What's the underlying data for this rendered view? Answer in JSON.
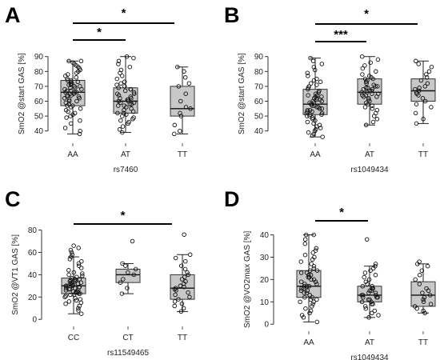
{
  "chart_data": [
    {
      "type": "box",
      "panel_label": "A",
      "title": "",
      "xlabel": "rs7460",
      "ylabel": "SmO2 @start GAS [%]",
      "ylim": [
        35,
        92
      ],
      "yticks": [
        40,
        50,
        60,
        70,
        80,
        90
      ],
      "categories": [
        "AA",
        "AT",
        "TT"
      ],
      "boxes": [
        {
          "category": "AA",
          "min": 38,
          "q1": 57,
          "median": 66,
          "q3": 74,
          "max": 87
        },
        {
          "category": "AT",
          "min": 39,
          "q1": 52,
          "median": 60,
          "q3": 69,
          "max": 90
        },
        {
          "category": "TT",
          "min": 38,
          "q1": 50,
          "median": 55,
          "q3": 70,
          "max": 83
        }
      ],
      "points": [
        {
          "category": "AA",
          "values": [
            38,
            40,
            42,
            45,
            47,
            49,
            50,
            51,
            52,
            53,
            54,
            55,
            56,
            57,
            57,
            58,
            59,
            60,
            60,
            61,
            62,
            62,
            63,
            63,
            64,
            64,
            65,
            65,
            66,
            66,
            66,
            67,
            67,
            68,
            68,
            69,
            69,
            70,
            70,
            71,
            71,
            72,
            72,
            73,
            73,
            74,
            74,
            75,
            76,
            77,
            78,
            79,
            80,
            81,
            82,
            83,
            84,
            85,
            86,
            87,
            87
          ]
        },
        {
          "category": "AT",
          "values": [
            39,
            41,
            43,
            45,
            46,
            47,
            48,
            49,
            50,
            51,
            52,
            52,
            53,
            54,
            55,
            56,
            57,
            57,
            58,
            58,
            59,
            59,
            60,
            60,
            61,
            61,
            62,
            62,
            63,
            64,
            65,
            65,
            66,
            67,
            68,
            68,
            69,
            70,
            71,
            72,
            73,
            75,
            77,
            79,
            81,
            83,
            85,
            87,
            89,
            90
          ]
        },
        {
          "category": "TT",
          "values": [
            38,
            40,
            44,
            50,
            52,
            55,
            56,
            60,
            65,
            70,
            72,
            76,
            80,
            83
          ]
        }
      ],
      "significance": [
        {
          "from": "AA",
          "to": "AT",
          "label": "*"
        },
        {
          "from": "AA",
          "to": "TT",
          "label": "*"
        }
      ]
    },
    {
      "type": "box",
      "panel_label": "B",
      "title": "",
      "xlabel": "rs1049434",
      "ylabel": "SmO2 @start GAS [%]",
      "ylim": [
        35,
        92
      ],
      "yticks": [
        40,
        50,
        60,
        70,
        80,
        90
      ],
      "categories": [
        "AA",
        "AT",
        "TT"
      ],
      "boxes": [
        {
          "category": "AA",
          "min": 36,
          "q1": 51,
          "median": 58,
          "q3": 68,
          "max": 89
        },
        {
          "category": "AT",
          "min": 44,
          "q1": 58,
          "median": 66,
          "q3": 75,
          "max": 90
        },
        {
          "category": "TT",
          "min": 45,
          "q1": 60,
          "median": 67,
          "q3": 75,
          "max": 87
        }
      ],
      "points": [
        {
          "category": "AA",
          "values": [
            36,
            37,
            38,
            39,
            40,
            41,
            42,
            43,
            44,
            45,
            46,
            47,
            48,
            49,
            50,
            50,
            51,
            51,
            52,
            52,
            53,
            53,
            54,
            54,
            55,
            55,
            56,
            56,
            57,
            57,
            58,
            58,
            59,
            59,
            60,
            60,
            61,
            61,
            62,
            62,
            63,
            63,
            64,
            64,
            65,
            66,
            67,
            68,
            69,
            70,
            71,
            72,
            73,
            74,
            75,
            77,
            79,
            81,
            83,
            85,
            87,
            89
          ]
        },
        {
          "category": "AT",
          "values": [
            44,
            46,
            48,
            50,
            52,
            54,
            55,
            56,
            57,
            58,
            59,
            60,
            61,
            62,
            63,
            63,
            64,
            64,
            65,
            65,
            66,
            66,
            67,
            67,
            68,
            68,
            69,
            69,
            70,
            70,
            71,
            72,
            73,
            74,
            75,
            75,
            76,
            77,
            78,
            80,
            82,
            84,
            86,
            88,
            90
          ]
        },
        {
          "category": "TT",
          "values": [
            45,
            48,
            52,
            56,
            58,
            60,
            62,
            64,
            65,
            66,
            67,
            68,
            69,
            70,
            72,
            74,
            76,
            78,
            80,
            83,
            85,
            87
          ]
        }
      ],
      "significance": [
        {
          "from": "AA",
          "to": "AT",
          "label": "***"
        },
        {
          "from": "AA",
          "to": "TT",
          "label": "*"
        }
      ]
    },
    {
      "type": "box",
      "panel_label": "C",
      "title": "",
      "xlabel": "rs11549465",
      "ylabel": "SmO2 @VT1 GAS [%]",
      "ylim": [
        -2,
        84
      ],
      "yticks": [
        0,
        20,
        40,
        60,
        80
      ],
      "categories": [
        "CC",
        "CT",
        "TT"
      ],
      "boxes": [
        {
          "category": "CC",
          "min": 5,
          "q1": 23,
          "median": 30,
          "q3": 37,
          "max": 56
        },
        {
          "category": "CT",
          "min": 23,
          "q1": 33,
          "median": 40,
          "q3": 45,
          "max": 50
        },
        {
          "category": "TT",
          "min": 7,
          "q1": 18,
          "median": 28,
          "q3": 40,
          "max": 58
        }
      ],
      "points": [
        {
          "category": "CC",
          "values": [
            5,
            8,
            10,
            12,
            14,
            15,
            16,
            17,
            18,
            19,
            20,
            21,
            22,
            22,
            23,
            23,
            24,
            24,
            25,
            25,
            26,
            26,
            27,
            27,
            28,
            28,
            29,
            29,
            30,
            30,
            30,
            31,
            31,
            32,
            32,
            33,
            33,
            34,
            34,
            35,
            35,
            36,
            36,
            37,
            38,
            39,
            40,
            41,
            42,
            44,
            46,
            48,
            50,
            52,
            54,
            56,
            58,
            60,
            62,
            64,
            66
          ]
        },
        {
          "category": "CT",
          "values": [
            23,
            28,
            33,
            36,
            40,
            42,
            45,
            48,
            50,
            70
          ]
        },
        {
          "category": "TT",
          "values": [
            7,
            10,
            12,
            14,
            16,
            18,
            20,
            22,
            24,
            26,
            27,
            28,
            29,
            30,
            32,
            34,
            36,
            38,
            40,
            42,
            45,
            48,
            52,
            55,
            58,
            76
          ]
        }
      ],
      "significance": [
        {
          "from": "CC",
          "to": "CT",
          "label": "*"
        }
      ]
    },
    {
      "type": "box",
      "panel_label": "D",
      "title": "",
      "xlabel": "rs1049434",
      "ylabel": "SmO2 @VO2max GAS [%]",
      "ylim": [
        -1,
        42
      ],
      "yticks": [
        0,
        10,
        20,
        30,
        40
      ],
      "categories": [
        "AA",
        "AT",
        "TT"
      ],
      "boxes": [
        {
          "category": "AA",
          "min": 1,
          "q1": 12,
          "median": 17,
          "q3": 24,
          "max": 40
        },
        {
          "category": "AT",
          "min": 3,
          "q1": 10,
          "median": 13,
          "q3": 17,
          "max": 26
        },
        {
          "category": "TT",
          "min": 5,
          "q1": 8,
          "median": 13,
          "q3": 19,
          "max": 27
        }
      ],
      "points": [
        {
          "category": "AA",
          "values": [
            1,
            3,
            4,
            5,
            6,
            7,
            8,
            9,
            10,
            10,
            11,
            11,
            12,
            12,
            13,
            13,
            14,
            14,
            15,
            15,
            16,
            16,
            17,
            17,
            17,
            18,
            18,
            19,
            19,
            20,
            20,
            21,
            21,
            22,
            22,
            23,
            23,
            24,
            24,
            25,
            26,
            27,
            28,
            29,
            30,
            31,
            32,
            33,
            34,
            36,
            38,
            40,
            40
          ]
        },
        {
          "category": "AT",
          "values": [
            3,
            4,
            5,
            6,
            7,
            8,
            9,
            9,
            10,
            10,
            11,
            11,
            12,
            12,
            12,
            13,
            13,
            13,
            14,
            14,
            15,
            15,
            16,
            16,
            17,
            17,
            18,
            19,
            20,
            21,
            22,
            23,
            24,
            25,
            26,
            27,
            38
          ]
        },
        {
          "category": "TT",
          "values": [
            5,
            6,
            7,
            8,
            9,
            10,
            11,
            12,
            13,
            14,
            15,
            16,
            18,
            20,
            22,
            24,
            26,
            27,
            28
          ]
        }
      ],
      "significance": [
        {
          "from": "AA",
          "to": "AT",
          "label": "*"
        }
      ]
    }
  ]
}
